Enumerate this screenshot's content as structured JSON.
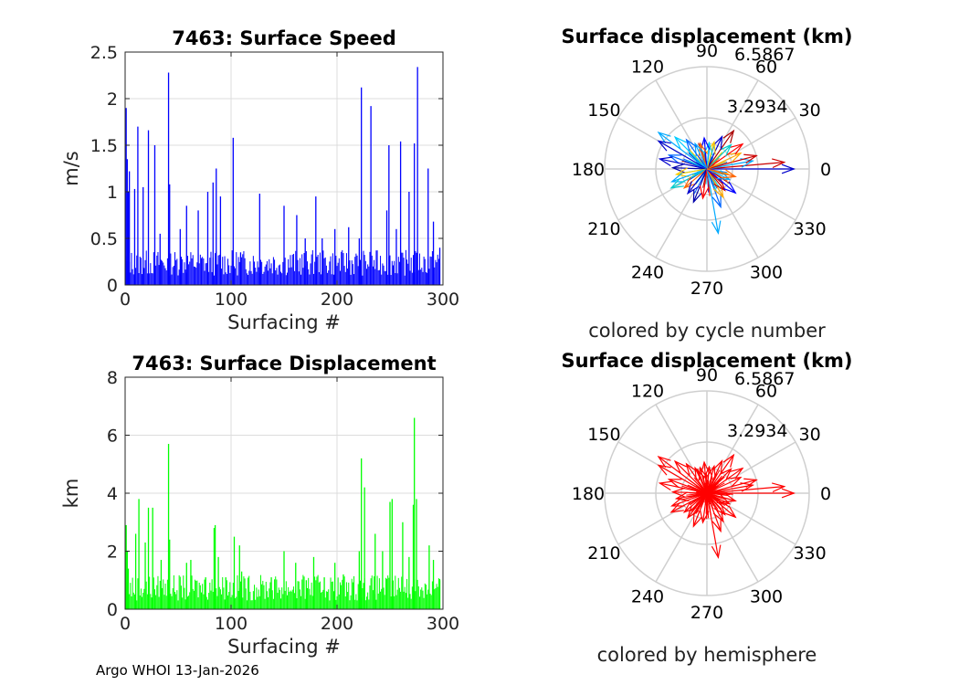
{
  "footer": "Argo WHOI 13-Jan-2026",
  "chart_data": [
    {
      "type": "bar",
      "title": "7463: Surface Speed",
      "xlabel": "Surfacing #",
      "ylabel": "m/s",
      "xlim": [
        0,
        300
      ],
      "ylim": [
        0,
        2.5
      ],
      "xticks": [
        "0",
        "100",
        "200",
        "300"
      ],
      "yticks": [
        "0",
        "0.5",
        "1",
        "1.5",
        "2",
        "2.5"
      ],
      "grid": true,
      "color": "#0000ff",
      "baseline": 0.1,
      "x": [
        1,
        2,
        3,
        4,
        9,
        12,
        17,
        22,
        28,
        33,
        41,
        42,
        52,
        58,
        69,
        78,
        83,
        86,
        90,
        102,
        109,
        127,
        150,
        162,
        170,
        180,
        186,
        198,
        211,
        221,
        223,
        232,
        247,
        249,
        256,
        260,
        268,
        273,
        276,
        286,
        291,
        297
      ],
      "values": [
        1.9,
        1.35,
        1.0,
        1.22,
        1.03,
        1.7,
        1.05,
        1.66,
        1.5,
        0.55,
        2.28,
        1.08,
        0.6,
        0.85,
        0.8,
        1.0,
        1.1,
        1.25,
        0.95,
        1.58,
        0.35,
        0.98,
        0.85,
        0.75,
        0.5,
        0.95,
        0.5,
        0.6,
        0.62,
        0.5,
        2.12,
        1.92,
        0.8,
        1.5,
        0.6,
        1.54,
        1.0,
        1.52,
        2.34,
        1.25,
        0.68,
        0.4
      ]
    },
    {
      "type": "polar-vector",
      "title": "Surface displacement (km)",
      "subtitle": "colored by cycle number",
      "rmax": 6.5867,
      "rings": [
        "3.2934",
        "6.5867"
      ],
      "angles": [
        "0",
        "30",
        "60",
        "90",
        "120",
        "150",
        "180",
        "210",
        "240",
        "270",
        "300",
        "330"
      ],
      "vectors": [
        {
          "angle": 0,
          "r": 5.6,
          "color": "#0000cc"
        },
        {
          "angle": 5,
          "r": 5.0,
          "color": "#cc0000"
        },
        {
          "angle": 10,
          "r": 3.0,
          "color": "#00aaff"
        },
        {
          "angle": 15,
          "r": 3.3,
          "color": "#cc0000"
        },
        {
          "angle": 25,
          "r": 2.4,
          "color": "#ffaa00"
        },
        {
          "angle": 35,
          "r": 2.8,
          "color": "#ff0000"
        },
        {
          "angle": 45,
          "r": 2.2,
          "color": "#00cccc"
        },
        {
          "angle": 55,
          "r": 3.0,
          "color": "#aa0000"
        },
        {
          "angle": 65,
          "r": 2.3,
          "color": "#0000cc"
        },
        {
          "angle": 75,
          "r": 1.8,
          "color": "#ffcc00"
        },
        {
          "angle": 85,
          "r": 1.7,
          "color": "#00ccff"
        },
        {
          "angle": 95,
          "r": 2.0,
          "color": "#0000ff"
        },
        {
          "angle": 105,
          "r": 1.7,
          "color": "#ff6600"
        },
        {
          "angle": 115,
          "r": 1.8,
          "color": "#00aaff"
        },
        {
          "angle": 125,
          "r": 2.3,
          "color": "#0066ff"
        },
        {
          "angle": 135,
          "r": 2.9,
          "color": "#00ccff"
        },
        {
          "angle": 143,
          "r": 3.9,
          "color": "#00aaff"
        },
        {
          "angle": 150,
          "r": 3.6,
          "color": "#0000cc"
        },
        {
          "angle": 160,
          "r": 2.6,
          "color": "#0066ff"
        },
        {
          "angle": 168,
          "r": 3.1,
          "color": "#0000cc"
        },
        {
          "angle": 178,
          "r": 2.2,
          "color": "#0000aa"
        },
        {
          "angle": 190,
          "r": 2.0,
          "color": "#ffcc00"
        },
        {
          "angle": 200,
          "r": 2.4,
          "color": "#00aaff"
        },
        {
          "angle": 208,
          "r": 2.6,
          "color": "#00cccc"
        },
        {
          "angle": 220,
          "r": 1.9,
          "color": "#ff6600"
        },
        {
          "angle": 232,
          "r": 2.0,
          "color": "#0000cc"
        },
        {
          "angle": 248,
          "r": 2.3,
          "color": "#0000aa"
        },
        {
          "angle": 262,
          "r": 1.9,
          "color": "#ff0000"
        },
        {
          "angle": 280,
          "r": 4.2,
          "color": "#00aaff"
        },
        {
          "angle": 290,
          "r": 2.6,
          "color": "#0066ff"
        },
        {
          "angle": 300,
          "r": 2.1,
          "color": "#ffaa00"
        },
        {
          "angle": 310,
          "r": 1.8,
          "color": "#cc0000"
        },
        {
          "angle": 320,
          "r": 2.4,
          "color": "#0000ff"
        },
        {
          "angle": 335,
          "r": 1.6,
          "color": "#00aaff"
        },
        {
          "angle": 345,
          "r": 1.9,
          "color": "#ff6600"
        }
      ]
    },
    {
      "type": "bar",
      "title": "7463: Surface Displacement",
      "xlabel": "Surfacing #",
      "ylabel": "km",
      "xlim": [
        0,
        300
      ],
      "ylim": [
        0,
        8
      ],
      "xticks": [
        "0",
        "100",
        "200",
        "300"
      ],
      "yticks": [
        "0",
        "2",
        "4",
        "6",
        "8"
      ],
      "grid": true,
      "color": "#00ff00",
      "baseline": 0.3,
      "x": [
        1,
        2,
        3,
        10,
        13,
        19,
        22,
        26,
        34,
        41,
        42,
        58,
        62,
        76,
        84,
        85,
        88,
        95,
        103,
        108,
        110,
        138,
        150,
        161,
        171,
        178,
        188,
        198,
        206,
        221,
        223,
        226,
        236,
        243,
        250,
        252,
        262,
        268,
        272,
        273,
        275,
        287,
        291,
        297
      ],
      "values": [
        2.9,
        2.0,
        1.4,
        2.6,
        3.8,
        2.3,
        3.5,
        3.5,
        1.7,
        5.7,
        2.4,
        1.6,
        1.7,
        1.1,
        2.8,
        2.9,
        1.8,
        1.1,
        2.5,
        2.2,
        1.3,
        1.1,
        2.0,
        1.6,
        1.0,
        1.8,
        1.1,
        1.6,
        1.2,
        2.0,
        5.2,
        4.2,
        2.6,
        2.0,
        3.7,
        3.8,
        3.0,
        1.8,
        3.6,
        6.6,
        3.8,
        2.2,
        1.7,
        1.0
      ]
    },
    {
      "type": "polar-vector",
      "title": "Surface displacement (km)",
      "subtitle": "colored by hemisphere",
      "rmax": 6.5867,
      "rings": [
        "3.2934",
        "6.5867"
      ],
      "angles": [
        "0",
        "30",
        "60",
        "90",
        "120",
        "150",
        "180",
        "210",
        "240",
        "270",
        "300",
        "330"
      ],
      "color": "#ff0000",
      "vectors": [
        {
          "angle": 0,
          "r": 5.6
        },
        {
          "angle": 5,
          "r": 5.0
        },
        {
          "angle": 10,
          "r": 3.0
        },
        {
          "angle": 15,
          "r": 3.3
        },
        {
          "angle": 25,
          "r": 2.4
        },
        {
          "angle": 35,
          "r": 2.8
        },
        {
          "angle": 45,
          "r": 2.2
        },
        {
          "angle": 55,
          "r": 3.0
        },
        {
          "angle": 65,
          "r": 2.3
        },
        {
          "angle": 75,
          "r": 1.8
        },
        {
          "angle": 85,
          "r": 1.7
        },
        {
          "angle": 95,
          "r": 2.0
        },
        {
          "angle": 105,
          "r": 1.7
        },
        {
          "angle": 115,
          "r": 1.8
        },
        {
          "angle": 125,
          "r": 2.3
        },
        {
          "angle": 135,
          "r": 2.9
        },
        {
          "angle": 143,
          "r": 3.9
        },
        {
          "angle": 150,
          "r": 3.6
        },
        {
          "angle": 160,
          "r": 2.6
        },
        {
          "angle": 168,
          "r": 3.1
        },
        {
          "angle": 178,
          "r": 2.2
        },
        {
          "angle": 190,
          "r": 2.0
        },
        {
          "angle": 200,
          "r": 2.4
        },
        {
          "angle": 208,
          "r": 2.6
        },
        {
          "angle": 220,
          "r": 1.9
        },
        {
          "angle": 232,
          "r": 2.0
        },
        {
          "angle": 248,
          "r": 2.3
        },
        {
          "angle": 262,
          "r": 1.9
        },
        {
          "angle": 280,
          "r": 4.2
        },
        {
          "angle": 290,
          "r": 2.6
        },
        {
          "angle": 300,
          "r": 2.1
        },
        {
          "angle": 310,
          "r": 1.8
        },
        {
          "angle": 320,
          "r": 2.4
        },
        {
          "angle": 335,
          "r": 1.6
        },
        {
          "angle": 345,
          "r": 1.9
        }
      ]
    }
  ]
}
